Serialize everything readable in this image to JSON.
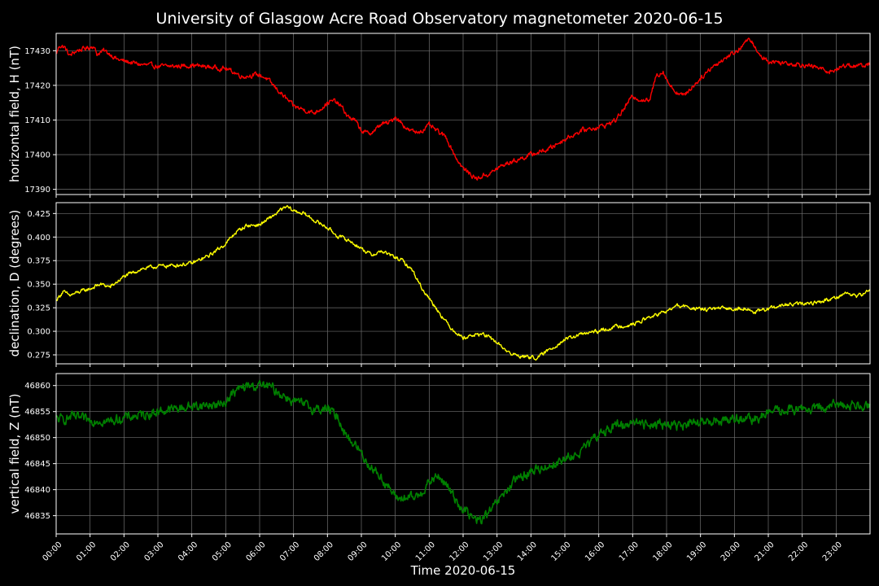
{
  "title": "University of Glasgow Acre Road Observatory magnetometer 2020-06-15",
  "xlabel": "Time 2020-06-15",
  "chart_data": [
    {
      "type": "line",
      "name": "H",
      "ylabel": "horizontal field, H (nT)",
      "color": "#ff0000",
      "ylim": [
        17388.5,
        17435
      ],
      "yticks": [
        17390,
        17400,
        17410,
        17420,
        17430
      ],
      "xlim": [
        0,
        24
      ],
      "grid": true,
      "x": [
        0,
        0.1,
        0.25,
        0.4,
        0.6,
        0.8,
        1.0,
        1.1,
        1.2,
        1.4,
        1.6,
        1.8,
        2.0,
        2.5,
        3.0,
        3.5,
        4.0,
        4.5,
        5.0,
        5.2,
        5.5,
        5.8,
        6.0,
        6.2,
        6.5,
        6.8,
        7.0,
        7.3,
        7.6,
        7.9,
        8.0,
        8.2,
        8.4,
        8.6,
        8.8,
        9.0,
        9.2,
        9.4,
        9.6,
        9.8,
        10.0,
        10.2,
        10.4,
        10.6,
        10.8,
        11.0,
        11.2,
        11.5,
        11.8,
        12.0,
        12.2,
        12.4,
        12.6,
        12.8,
        13.0,
        13.3,
        13.6,
        14.0,
        14.5,
        15.0,
        15.5,
        16.0,
        16.2,
        16.5,
        16.8,
        17.0,
        17.2,
        17.5,
        17.7,
        17.9,
        18.1,
        18.3,
        18.5,
        18.8,
        19.0,
        19.3,
        19.6,
        19.9,
        20.1,
        20.3,
        20.5,
        20.7,
        21.0,
        21.5,
        22.0,
        22.5,
        22.8,
        23.0,
        23.3,
        23.6,
        24.0
      ],
      "y": [
        17429,
        17431.5,
        17431,
        17428.5,
        17430,
        17430.5,
        17431,
        17431.5,
        17429,
        17430,
        17429,
        17427.5,
        17427,
        17426,
        17425.5,
        17425.5,
        17425.8,
        17425.3,
        17424.8,
        17424,
        17422.5,
        17423,
        17423,
        17422,
        17419,
        17416,
        17414,
        17413,
        17412,
        17414,
        17415,
        17415.5,
        17414,
        17411,
        17410,
        17407,
        17406,
        17407,
        17409,
        17409,
        17411,
        17409,
        17407,
        17406.5,
        17407,
        17408.5,
        17407,
        17405,
        17399,
        17396,
        17394.5,
        17393,
        17394,
        17394.5,
        17396,
        17397.5,
        17398.5,
        17400,
        17401.5,
        17404.5,
        17407,
        17408,
        17408.5,
        17410,
        17414,
        17417,
        17416,
        17415.5,
        17423,
        17424,
        17420,
        17418,
        17417,
        17420,
        17422,
        17425,
        17427,
        17429,
        17430,
        17432.5,
        17433,
        17429,
        17427,
        17426.5,
        17426,
        17425,
        17424,
        17424.5,
        17426,
        17425.5,
        17426
      ]
    },
    {
      "type": "line",
      "name": "D",
      "ylabel": "declination, D (degrees)",
      "color": "#ffff00",
      "ylim": [
        0.2655,
        0.4365
      ],
      "yticks": [
        0.275,
        0.3,
        0.325,
        0.35,
        0.375,
        0.4,
        0.425
      ],
      "ytick_labels": [
        "0.275",
        "0.300",
        "0.325",
        "0.350",
        "0.375",
        "0.400",
        "0.425"
      ],
      "xlim": [
        0,
        24
      ],
      "grid": true,
      "x": [
        0,
        0.2,
        0.4,
        0.7,
        1.0,
        1.3,
        1.6,
        2.0,
        2.5,
        3.0,
        3.5,
        4.0,
        4.5,
        5.0,
        5.3,
        5.6,
        6.0,
        6.3,
        6.6,
        6.8,
        7.0,
        7.3,
        7.6,
        8.0,
        8.3,
        8.6,
        9.0,
        9.3,
        9.6,
        9.9,
        10.2,
        10.5,
        10.8,
        11.0,
        11.3,
        11.6,
        12.0,
        12.3,
        12.6,
        13.0,
        13.4,
        13.8,
        14.2,
        14.6,
        15.0,
        15.5,
        16.0,
        16.5,
        17.0,
        17.5,
        18.0,
        18.3,
        18.6,
        19.0,
        19.5,
        20.0,
        20.3,
        20.6,
        21.0,
        21.5,
        22.0,
        22.5,
        23.0,
        23.3,
        23.6,
        24.0
      ],
      "y": [
        0.333,
        0.342,
        0.338,
        0.342,
        0.345,
        0.35,
        0.347,
        0.358,
        0.366,
        0.369,
        0.37,
        0.372,
        0.38,
        0.393,
        0.405,
        0.412,
        0.413,
        0.42,
        0.428,
        0.432,
        0.428,
        0.425,
        0.418,
        0.41,
        0.401,
        0.397,
        0.388,
        0.381,
        0.385,
        0.38,
        0.375,
        0.365,
        0.345,
        0.335,
        0.32,
        0.305,
        0.293,
        0.296,
        0.297,
        0.288,
        0.276,
        0.273,
        0.272,
        0.282,
        0.291,
        0.297,
        0.3,
        0.305,
        0.307,
        0.315,
        0.321,
        0.327,
        0.326,
        0.323,
        0.324,
        0.324,
        0.325,
        0.32,
        0.324,
        0.328,
        0.329,
        0.331,
        0.336,
        0.341,
        0.337,
        0.343
      ]
    },
    {
      "type": "line",
      "name": "Z",
      "ylabel": "vertical field, Z (nT)",
      "color": "#008000",
      "ylim": [
        46831.5,
        46862.3
      ],
      "yticks": [
        46835,
        46840,
        46845,
        46850,
        46855,
        46860
      ],
      "xlim": [
        0,
        24
      ],
      "grid": true,
      "x": [
        0,
        0.2,
        0.5,
        0.8,
        1.0,
        1.2,
        1.5,
        1.8,
        2.0,
        2.5,
        3.0,
        3.5,
        4.0,
        4.5,
        4.8,
        5.0,
        5.3,
        5.6,
        6.0,
        6.3,
        6.6,
        7.0,
        7.3,
        7.6,
        8.0,
        8.3,
        8.6,
        8.9,
        9.2,
        9.5,
        9.8,
        10.0,
        10.3,
        10.6,
        10.9,
        11.1,
        11.3,
        11.6,
        11.9,
        12.2,
        12.4,
        12.6,
        12.9,
        13.3,
        13.6,
        14.0,
        14.5,
        15.0,
        15.3,
        15.6,
        15.9,
        16.2,
        16.5,
        16.8,
        17.0,
        17.3,
        17.6,
        18.0,
        18.5,
        19.0,
        19.5,
        20.0,
        20.3,
        20.6,
        21.0,
        21.5,
        22.0,
        22.5,
        23.0,
        23.5,
        24.0
      ],
      "y": [
        46853.5,
        46853.5,
        46854,
        46853.5,
        46853.2,
        46853.5,
        46853,
        46853.5,
        46853.8,
        46854.3,
        46855,
        46855.5,
        46856,
        46856.3,
        46856.2,
        46857,
        46859,
        46859.8,
        46860,
        46859.8,
        46858.5,
        46857,
        46856.3,
        46855.5,
        46855.5,
        46854,
        46850,
        46848,
        46845,
        46843,
        46840.5,
        46838.5,
        46838.3,
        46838.5,
        46840.5,
        46842,
        46842.5,
        46840,
        46837,
        46835,
        46834,
        46834.5,
        46836.5,
        46840,
        46842,
        46843.5,
        46844.5,
        46845.8,
        46846.5,
        46848,
        46850,
        46851.5,
        46852.3,
        46852.5,
        46853.3,
        46852.5,
        46852.8,
        46852.5,
        46852.3,
        46852.8,
        46853.2,
        46853.8,
        46853.3,
        46853.5,
        46854.8,
        46855.3,
        46855.5,
        46855.5,
        46856.3,
        46856.3,
        46856.3
      ]
    }
  ],
  "xticks": [
    0,
    1,
    2,
    3,
    4,
    5,
    6,
    7,
    8,
    9,
    10,
    11,
    12,
    13,
    14,
    15,
    16,
    17,
    18,
    19,
    20,
    21,
    22,
    23
  ],
  "xtick_labels": [
    "00:00",
    "01:00",
    "02:00",
    "03:00",
    "04:00",
    "05:00",
    "06:00",
    "07:00",
    "08:00",
    "09:00",
    "10:00",
    "11:00",
    "12:00",
    "13:00",
    "14:00",
    "15:00",
    "16:00",
    "17:00",
    "18:00",
    "19:00",
    "20:00",
    "21:00",
    "22:00",
    "23:00"
  ]
}
